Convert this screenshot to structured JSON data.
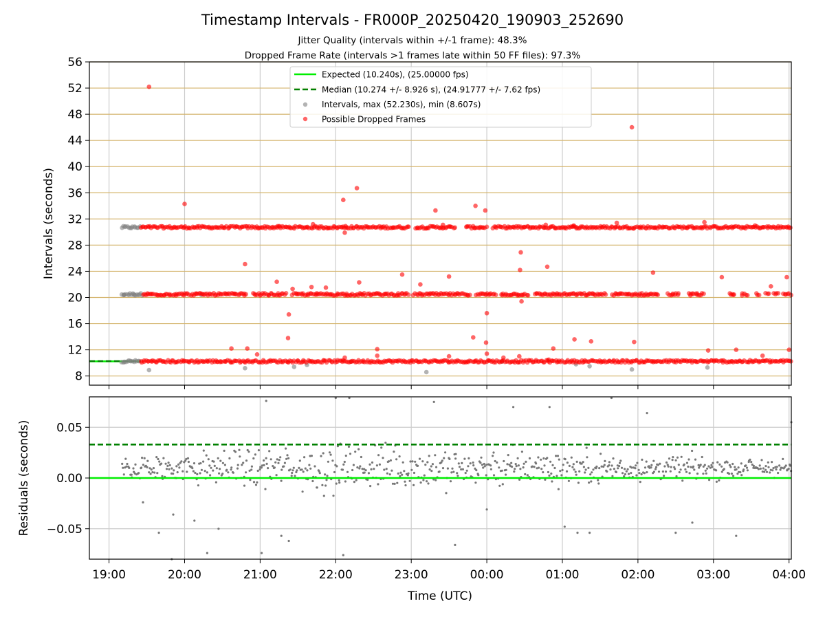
{
  "figure": {
    "title": "Timestamp Intervals - FR000P_20250420_190903_252690",
    "subtitle_1": "Jitter Quality (intervals within +/-1 frame): 48.3%",
    "subtitle_2": "Dropped Frame Rate (intervals >1 frames late within 50 FF files): 97.3%"
  },
  "chart_data": [
    {
      "type": "scatter",
      "title": "Timestamp Intervals - FR000P_20250420_190903_252690",
      "xlabel": "",
      "ylabel": "Intervals (seconds)",
      "x_unit": "hours since 19:00 UTC",
      "xlim": [
        -0.26,
        9.03
      ],
      "ylim": [
        6.6,
        56
      ],
      "yticks": [
        8,
        12,
        16,
        20,
        24,
        28,
        32,
        36,
        40,
        44,
        48,
        52,
        56
      ],
      "ytick_labels": [
        "8",
        "12",
        "16",
        "20",
        "24",
        "28",
        "32",
        "36",
        "40",
        "44",
        "48",
        "52",
        "56"
      ],
      "hgrid_color": "#d4b46c",
      "vgrid": true,
      "legend_position": "top-center",
      "legend": [
        {
          "label": "Expected (10.240s), (25.00000 fps)",
          "style": "solid-line",
          "color": "#00ee00"
        },
        {
          "label": "Median (10.274 +/- 8.926 s), (24.91777 +/- 7.62 fps)",
          "style": "dashed-line",
          "color": "#008000"
        },
        {
          "label": "Intervals, max (52.230s), min (8.607s)",
          "style": "marker",
          "color": "#808080"
        },
        {
          "label": "Possible Dropped Frames",
          "style": "marker",
          "color": "#ff0000"
        }
      ],
      "reference_lines": [
        {
          "name": "Expected",
          "y": 10.24,
          "color": "#00ee00",
          "dash": "solid"
        },
        {
          "name": "Median",
          "y": 10.274,
          "color": "#008000",
          "dash": "dashed"
        }
      ],
      "series": [
        {
          "name": "Intervals, max (52.230s), min (8.607s)",
          "color": "#808080",
          "bands": [
            {
              "y": 30.72,
              "x_start": 0.17,
              "x_end": 0.42
            },
            {
              "y": 20.48,
              "x_start": 0.17,
              "x_end": 0.45
            },
            {
              "y": 10.24,
              "x_start": 0.17,
              "x_end": 0.42
            }
          ],
          "points": [
            {
              "x": 0.53,
              "y": 8.9
            },
            {
              "x": 1.8,
              "y": 9.2
            },
            {
              "x": 2.45,
              "y": 9.4
            },
            {
              "x": 2.62,
              "y": 9.7
            },
            {
              "x": 3.2,
              "y": 10.2
            },
            {
              "x": 4.2,
              "y": 8.6
            },
            {
              "x": 5.2,
              "y": 10.2
            },
            {
              "x": 6.18,
              "y": 9.8
            },
            {
              "x": 6.36,
              "y": 9.5
            },
            {
              "x": 6.92,
              "y": 9.0
            },
            {
              "x": 7.92,
              "y": 9.3
            },
            {
              "x": 0.2,
              "y": 20.4
            },
            {
              "x": 0.33,
              "y": 20.5
            },
            {
              "x": 1.22,
              "y": 20.4
            }
          ]
        },
        {
          "name": "Possible Dropped Frames",
          "color": "#ff0000",
          "bands": [
            {
              "y": 30.72,
              "x_start": 0.42,
              "x_end": 9.03,
              "gaps": [
                [
                  3.98,
                  4.05
                ],
                [
                  4.59,
                  4.72
                ],
                [
                  5.0,
                  5.08
                ]
              ]
            },
            {
              "y": 10.24,
              "x_start": 0.42,
              "x_end": 9.03,
              "gaps": []
            },
            {
              "y": 20.48,
              "x_start": 0.45,
              "x_end": 9.03,
              "gaps": [
                [
                  1.83,
                  1.9
                ],
                [
                  2.35,
                  2.42
                ],
                [
                  3.97,
                  4.03
                ],
                [
                  4.77,
                  4.85
                ],
                [
                  5.12,
                  5.18
                ],
                [
                  5.55,
                  5.62
                ],
                [
                  6.58,
                  6.65
                ],
                [
                  7.28,
                  7.38
                ],
                [
                  7.55,
                  7.65
                ],
                [
                  7.87,
                  8.2
                ],
                [
                  8.28,
                  8.36
                ],
                [
                  8.45,
                  8.55
                ],
                [
                  8.62,
                  8.68
                ],
                [
                  8.74,
                  8.8
                ],
                [
                  8.86,
                  8.92
                ]
              ]
            }
          ],
          "points": [
            {
              "x": 0.53,
              "y": 52.2
            },
            {
              "x": 6.92,
              "y": 46.0
            },
            {
              "x": 3.28,
              "y": 36.7
            },
            {
              "x": 3.1,
              "y": 34.9
            },
            {
              "x": 1.0,
              "y": 34.3
            },
            {
              "x": 4.85,
              "y": 34.0
            },
            {
              "x": 4.98,
              "y": 33.3
            },
            {
              "x": 4.32,
              "y": 33.3
            },
            {
              "x": 3.12,
              "y": 29.9
            },
            {
              "x": 5.45,
              "y": 26.9
            },
            {
              "x": 1.8,
              "y": 25.1
            },
            {
              "x": 5.8,
              "y": 24.7
            },
            {
              "x": 5.44,
              "y": 24.2
            },
            {
              "x": 7.2,
              "y": 23.8
            },
            {
              "x": 3.88,
              "y": 23.5
            },
            {
              "x": 4.5,
              "y": 23.2
            },
            {
              "x": 8.11,
              "y": 23.1
            },
            {
              "x": 8.97,
              "y": 23.1
            },
            {
              "x": 2.22,
              "y": 22.4
            },
            {
              "x": 3.31,
              "y": 22.3
            },
            {
              "x": 4.12,
              "y": 22.0
            },
            {
              "x": 8.76,
              "y": 21.7
            },
            {
              "x": 2.43,
              "y": 21.3
            },
            {
              "x": 2.68,
              "y": 21.6
            },
            {
              "x": 2.87,
              "y": 21.5
            },
            {
              "x": 5.46,
              "y": 19.4
            },
            {
              "x": 5.0,
              "y": 17.6
            },
            {
              "x": 2.38,
              "y": 17.4
            },
            {
              "x": 2.37,
              "y": 13.8
            },
            {
              "x": 4.82,
              "y": 13.9
            },
            {
              "x": 6.16,
              "y": 13.6
            },
            {
              "x": 6.38,
              "y": 13.3
            },
            {
              "x": 6.95,
              "y": 13.2
            },
            {
              "x": 4.99,
              "y": 13.1
            },
            {
              "x": 1.62,
              "y": 12.2
            },
            {
              "x": 1.83,
              "y": 12.2
            },
            {
              "x": 3.55,
              "y": 12.1
            },
            {
              "x": 5.88,
              "y": 12.2
            },
            {
              "x": 7.93,
              "y": 11.9
            },
            {
              "x": 8.3,
              "y": 12.0
            },
            {
              "x": 9.0,
              "y": 12.0
            },
            {
              "x": 1.96,
              "y": 11.3
            },
            {
              "x": 3.55,
              "y": 11.1
            },
            {
              "x": 4.5,
              "y": 11.0
            },
            {
              "x": 5.0,
              "y": 11.4
            },
            {
              "x": 5.43,
              "y": 11.0
            },
            {
              "x": 8.65,
              "y": 11.1
            },
            {
              "x": 3.12,
              "y": 10.8
            },
            {
              "x": 5.22,
              "y": 10.8
            },
            {
              "x": 5.82,
              "y": 10.5
            },
            {
              "x": 2.25,
              "y": 30.9
            },
            {
              "x": 2.7,
              "y": 31.2
            },
            {
              "x": 3.13,
              "y": 30.9
            },
            {
              "x": 4.42,
              "y": 31.1
            },
            {
              "x": 5.78,
              "y": 31.1
            },
            {
              "x": 6.15,
              "y": 31.0
            },
            {
              "x": 6.72,
              "y": 31.4
            },
            {
              "x": 7.88,
              "y": 31.5
            },
            {
              "x": 8.55,
              "y": 31.0
            }
          ]
        }
      ]
    },
    {
      "type": "scatter",
      "title": "",
      "xlabel": "Time (UTC)",
      "ylabel": "Residuals (seconds)",
      "x_unit": "hours since 19:00 UTC",
      "xlim": [
        -0.26,
        9.03
      ],
      "ylim": [
        -0.08,
        0.08
      ],
      "yticks": [
        -0.05,
        0.0,
        0.05
      ],
      "ytick_labels": [
        "−0.05",
        "0.00",
        "0.05"
      ],
      "xticks": [
        0,
        1,
        2,
        3,
        4,
        5,
        6,
        7,
        8,
        9
      ],
      "xtick_labels": [
        "19:00",
        "20:00",
        "21:00",
        "22:00",
        "23:00",
        "00:00",
        "01:00",
        "02:00",
        "03:00",
        "04:00"
      ],
      "grid": true,
      "reference_lines": [
        {
          "name": "zero",
          "y": 0.0,
          "color": "#00ee00",
          "dash": "solid"
        },
        {
          "name": "dashed",
          "y": 0.033,
          "color": "#008000",
          "dash": "dashed"
        }
      ],
      "series": [
        {
          "name": "",
          "color": "#777777",
          "x_start": 0.17,
          "x_end": 9.03,
          "count": 720,
          "center": 0.01,
          "spread_start": 0.04,
          "spread_peak": 0.08,
          "spread_end": 0.028,
          "note_points": [
            {
              "x": 0.45,
              "y": -0.024
            },
            {
              "x": 0.66,
              "y": -0.054
            },
            {
              "x": 0.83,
              "y": -0.08
            },
            {
              "x": 0.85,
              "y": -0.036
            },
            {
              "x": 1.13,
              "y": -0.042
            },
            {
              "x": 1.3,
              "y": -0.074
            },
            {
              "x": 1.45,
              "y": -0.05
            },
            {
              "x": 2.02,
              "y": -0.074
            },
            {
              "x": 2.08,
              "y": 0.076
            },
            {
              "x": 2.28,
              "y": -0.057
            },
            {
              "x": 2.38,
              "y": -0.062
            },
            {
              "x": 3.0,
              "y": 0.079
            },
            {
              "x": 3.1,
              "y": -0.076
            },
            {
              "x": 3.18,
              "y": 0.079
            },
            {
              "x": 4.3,
              "y": 0.075
            },
            {
              "x": 4.58,
              "y": -0.066
            },
            {
              "x": 5.0,
              "y": -0.031
            },
            {
              "x": 5.35,
              "y": 0.07
            },
            {
              "x": 5.83,
              "y": 0.07
            },
            {
              "x": 6.03,
              "y": -0.048
            },
            {
              "x": 6.2,
              "y": -0.054
            },
            {
              "x": 6.36,
              "y": -0.054
            },
            {
              "x": 6.65,
              "y": 0.079
            },
            {
              "x": 7.12,
              "y": 0.064
            },
            {
              "x": 7.5,
              "y": -0.054
            },
            {
              "x": 7.72,
              "y": -0.044
            },
            {
              "x": 8.3,
              "y": -0.057
            },
            {
              "x": 9.03,
              "y": 0.055
            }
          ]
        }
      ]
    }
  ]
}
